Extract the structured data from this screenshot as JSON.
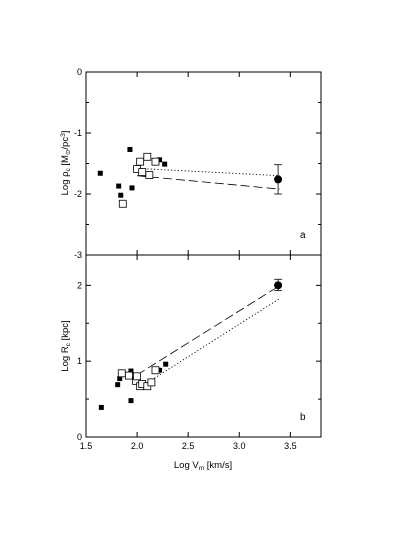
{
  "chart_data": [
    {
      "type": "scatter",
      "panel_label": "a",
      "ylabel": {
        "prefix": "Log ρ",
        "sub": "c",
        "mid": "  [M",
        "sub2": "⊙",
        "end": "/pc",
        "sup": "3",
        "close": "]"
      },
      "xlim": [
        1.5,
        3.8
      ],
      "ylim": [
        -3,
        0
      ],
      "yticks": [
        0,
        -1,
        -2,
        -3
      ],
      "yticklabels": [
        "0",
        "-1",
        "-2",
        "-3"
      ],
      "series": [
        {
          "marker": "filled-square",
          "points": [
            [
              1.64,
              -1.66
            ],
            [
              1.82,
              -1.87
            ],
            [
              1.84,
              -2.02
            ],
            [
              1.93,
              -1.27
            ],
            [
              1.95,
              -1.9
            ],
            [
              2.22,
              -1.44
            ],
            [
              2.27,
              -1.51
            ]
          ]
        },
        {
          "marker": "open-square",
          "points": [
            [
              1.86,
              -2.16
            ],
            [
              2.0,
              -1.59
            ],
            [
              2.03,
              -1.47
            ],
            [
              2.05,
              -1.64
            ],
            [
              2.1,
              -1.39
            ],
            [
              2.12,
              -1.69
            ],
            [
              2.18,
              -1.47
            ]
          ]
        },
        {
          "marker": "filled-circle",
          "points": [
            [
              3.38,
              -1.76
            ]
          ],
          "yerr": [
            [
              -2.0,
              -1.52
            ]
          ]
        }
      ],
      "lines": [
        {
          "style": "dotted",
          "x": [
            2.0,
            3.4
          ],
          "y": [
            -1.58,
            -1.7
          ]
        },
        {
          "style": "dashed",
          "x": [
            2.0,
            3.4
          ],
          "y": [
            -1.7,
            -1.92
          ]
        }
      ]
    },
    {
      "type": "scatter",
      "panel_label": "b",
      "xlabel": {
        "prefix": "Log V",
        "sub": "m",
        "rest": "  [km/s]"
      },
      "ylabel": {
        "prefix": "Log R",
        "sub": "c",
        "rest": "  [kpc]"
      },
      "xlim": [
        1.5,
        3.8
      ],
      "ylim": [
        0,
        2.4
      ],
      "xticks": [
        1.5,
        2.0,
        2.5,
        3.0,
        3.5
      ],
      "xticklabels": [
        "1.5",
        "2.0",
        "2.5",
        "3.0",
        "3.5"
      ],
      "yticks": [
        0,
        1,
        2
      ],
      "yticklabels": [
        "0",
        "1",
        "2"
      ],
      "series": [
        {
          "marker": "filled-square",
          "points": [
            [
              1.65,
              0.39
            ],
            [
              1.81,
              0.69
            ],
            [
              1.83,
              0.77
            ],
            [
              1.94,
              0.48
            ],
            [
              1.94,
              0.87
            ],
            [
              2.22,
              0.88
            ],
            [
              2.28,
              0.96
            ]
          ]
        },
        {
          "marker": "open-square",
          "points": [
            [
              1.85,
              0.84
            ],
            [
              1.92,
              0.81
            ],
            [
              1.99,
              0.74
            ],
            [
              2.0,
              0.8
            ],
            [
              2.03,
              0.67
            ],
            [
              2.05,
              0.7
            ],
            [
              2.1,
              0.67
            ],
            [
              2.14,
              0.72
            ],
            [
              2.18,
              0.88
            ]
          ]
        },
        {
          "marker": "filled-circle",
          "points": [
            [
              3.38,
              2.0
            ]
          ],
          "yerr": [
            [
              1.93,
              2.08
            ]
          ]
        }
      ],
      "lines": [
        {
          "style": "dashed",
          "x": [
            2.0,
            3.4
          ],
          "y": [
            0.82,
            2.0
          ]
        },
        {
          "style": "dotted",
          "x": [
            2.0,
            3.4
          ],
          "y": [
            0.63,
            1.83
          ]
        }
      ]
    }
  ]
}
